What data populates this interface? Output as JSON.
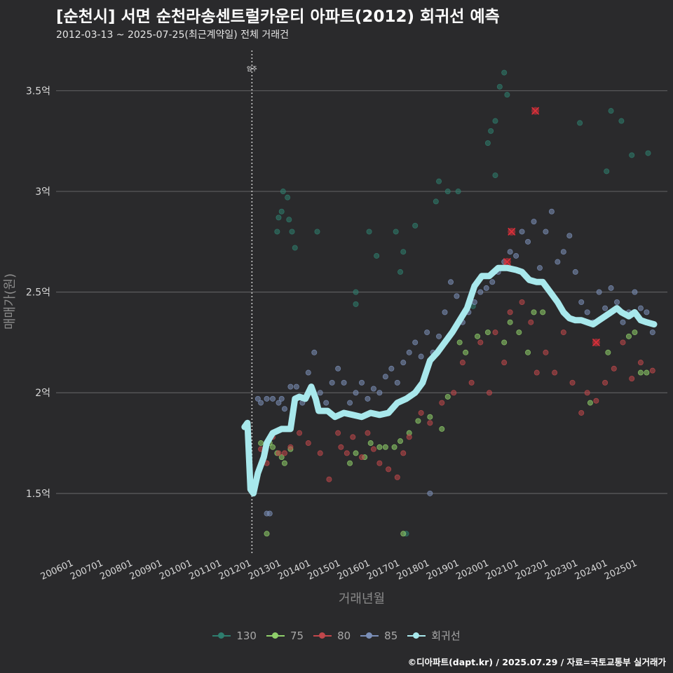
{
  "title": "[순천시] 서면 순천라송센트럴카운티 아파트(2012) 회귀선 예측",
  "subtitle": "2012-03-13 ~ 2025-07-25(최근계약일) 전체 거래건",
  "caption": "©디아파트(dapt.kr) / 2025.07.29 / 자료=국토교통부 실거래가",
  "chart_data": {
    "type": "scatter",
    "xlabel": "거래년월",
    "ylabel": "매매가(원)",
    "x_ticks": [
      "200601",
      "200701",
      "200801",
      "200901",
      "201001",
      "201101",
      "201201",
      "201301",
      "201401",
      "201501",
      "201601",
      "201701",
      "201801",
      "201901",
      "202001",
      "202101",
      "202201",
      "202301",
      "202401",
      "202501"
    ],
    "y_ticks": [
      {
        "value": 1.5,
        "label": "1.5억"
      },
      {
        "value": 2.0,
        "label": "2억"
      },
      {
        "value": 2.5,
        "label": "2.5억"
      },
      {
        "value": 3.0,
        "label": "3억"
      },
      {
        "value": 3.5,
        "label": "3.5억"
      }
    ],
    "xlim": [
      2005.4,
      2026.0
    ],
    "ylim": [
      1.2,
      3.7
    ],
    "y_unit": "억",
    "grid": true,
    "legend_position": "bottom",
    "vline": {
      "x": 2012.0,
      "label": "입주"
    },
    "colors": {
      "130": "#2e7d6e",
      "75": "#8fcf6a",
      "80": "#c0474b",
      "85": "#7b8fb8",
      "회귀선": "#a8e8ec"
    },
    "series": [
      {
        "name": "130",
        "points": [
          [
            2012.85,
            2.8
          ],
          [
            2012.9,
            2.87
          ],
          [
            2013.0,
            2.9
          ],
          [
            2013.05,
            3.0
          ],
          [
            2013.2,
            2.97
          ],
          [
            2013.25,
            2.86
          ],
          [
            2013.35,
            2.8
          ],
          [
            2013.45,
            2.72
          ],
          [
            2014.2,
            2.8
          ],
          [
            2015.5,
            2.5
          ],
          [
            2015.5,
            2.44
          ],
          [
            2015.95,
            2.8
          ],
          [
            2016.2,
            2.68
          ],
          [
            2016.85,
            2.8
          ],
          [
            2017.0,
            2.6
          ],
          [
            2017.1,
            2.7
          ],
          [
            2017.5,
            2.83
          ],
          [
            2018.2,
            2.95
          ],
          [
            2018.3,
            3.05
          ],
          [
            2018.6,
            3.0
          ],
          [
            2018.95,
            3.0
          ],
          [
            2019.45,
            2.43
          ],
          [
            2019.95,
            3.24
          ],
          [
            2020.05,
            3.3
          ],
          [
            2020.2,
            3.35
          ],
          [
            2020.2,
            3.08
          ],
          [
            2020.35,
            3.52
          ],
          [
            2020.5,
            3.59
          ],
          [
            2020.6,
            3.48
          ],
          [
            2023.05,
            3.34
          ],
          [
            2023.95,
            3.1
          ],
          [
            2024.1,
            3.4
          ],
          [
            2024.45,
            3.35
          ],
          [
            2024.8,
            3.18
          ],
          [
            2025.35,
            3.19
          ],
          [
            2017.2,
            1.3
          ]
        ]
      },
      {
        "name": "75",
        "points": [
          [
            2012.3,
            1.75
          ],
          [
            2012.6,
            1.75
          ],
          [
            2012.7,
            1.73
          ],
          [
            2012.85,
            1.7
          ],
          [
            2013.0,
            1.68
          ],
          [
            2013.1,
            1.65
          ],
          [
            2013.3,
            1.72
          ],
          [
            2015.3,
            1.65
          ],
          [
            2015.5,
            1.7
          ],
          [
            2015.8,
            1.68
          ],
          [
            2016.0,
            1.75
          ],
          [
            2016.3,
            1.73
          ],
          [
            2016.5,
            1.73
          ],
          [
            2016.8,
            1.73
          ],
          [
            2017.0,
            1.76
          ],
          [
            2017.3,
            1.8
          ],
          [
            2017.6,
            1.86
          ],
          [
            2018.0,
            1.88
          ],
          [
            2018.4,
            1.82
          ],
          [
            2018.6,
            1.98
          ],
          [
            2019.0,
            2.25
          ],
          [
            2019.2,
            2.2
          ],
          [
            2019.6,
            2.28
          ],
          [
            2019.95,
            2.3
          ],
          [
            2020.5,
            2.25
          ],
          [
            2020.7,
            2.35
          ],
          [
            2021.0,
            2.3
          ],
          [
            2021.3,
            2.2
          ],
          [
            2021.5,
            2.4
          ],
          [
            2021.8,
            2.4
          ],
          [
            2023.4,
            1.95
          ],
          [
            2024.0,
            2.2
          ],
          [
            2024.7,
            2.28
          ],
          [
            2024.9,
            2.3
          ],
          [
            2025.1,
            2.1
          ],
          [
            2025.3,
            2.1
          ],
          [
            2017.1,
            1.3
          ],
          [
            2012.5,
            1.3
          ]
        ]
      },
      {
        "name": "80",
        "points": [
          [
            2012.3,
            1.72
          ],
          [
            2012.5,
            1.65
          ],
          [
            2012.7,
            1.78
          ],
          [
            2012.9,
            1.7
          ],
          [
            2013.1,
            1.7
          ],
          [
            2013.3,
            1.73
          ],
          [
            2013.6,
            1.8
          ],
          [
            2013.9,
            1.75
          ],
          [
            2014.3,
            1.7
          ],
          [
            2014.6,
            1.57
          ],
          [
            2014.9,
            1.8
          ],
          [
            2015.0,
            1.73
          ],
          [
            2015.2,
            1.7
          ],
          [
            2015.4,
            1.78
          ],
          [
            2015.7,
            1.68
          ],
          [
            2015.9,
            1.8
          ],
          [
            2016.1,
            1.72
          ],
          [
            2016.3,
            1.65
          ],
          [
            2016.6,
            1.62
          ],
          [
            2016.9,
            1.58
          ],
          [
            2017.1,
            1.7
          ],
          [
            2017.3,
            1.78
          ],
          [
            2017.7,
            1.9
          ],
          [
            2018.0,
            1.85
          ],
          [
            2018.4,
            1.95
          ],
          [
            2018.8,
            2.0
          ],
          [
            2019.1,
            2.15
          ],
          [
            2019.4,
            2.05
          ],
          [
            2019.7,
            2.25
          ],
          [
            2020.0,
            2.0
          ],
          [
            2020.2,
            2.3
          ],
          [
            2020.5,
            2.15
          ],
          [
            2020.7,
            2.4
          ],
          [
            2021.1,
            2.45
          ],
          [
            2021.4,
            2.35
          ],
          [
            2021.6,
            2.1
          ],
          [
            2021.9,
            2.2
          ],
          [
            2022.2,
            2.1
          ],
          [
            2022.5,
            2.3
          ],
          [
            2022.8,
            2.05
          ],
          [
            2023.1,
            1.9
          ],
          [
            2023.3,
            2.0
          ],
          [
            2023.6,
            1.96
          ],
          [
            2023.9,
            2.05
          ],
          [
            2024.2,
            2.12
          ],
          [
            2024.5,
            2.25
          ],
          [
            2024.8,
            2.07
          ],
          [
            2025.1,
            2.15
          ],
          [
            2025.5,
            2.11
          ]
        ]
      },
      {
        "name": "85",
        "points": [
          [
            2012.2,
            1.97
          ],
          [
            2012.3,
            1.95
          ],
          [
            2012.5,
            1.97
          ],
          [
            2012.7,
            1.97
          ],
          [
            2012.9,
            1.95
          ],
          [
            2013.0,
            1.97
          ],
          [
            2013.1,
            1.92
          ],
          [
            2013.3,
            2.03
          ],
          [
            2013.5,
            2.03
          ],
          [
            2013.7,
            1.95
          ],
          [
            2013.9,
            2.1
          ],
          [
            2014.1,
            2.2
          ],
          [
            2014.3,
            2.0
          ],
          [
            2014.5,
            1.95
          ],
          [
            2014.7,
            2.05
          ],
          [
            2014.9,
            2.12
          ],
          [
            2015.1,
            2.05
          ],
          [
            2015.3,
            1.95
          ],
          [
            2015.5,
            2.0
          ],
          [
            2015.7,
            2.05
          ],
          [
            2015.9,
            1.97
          ],
          [
            2016.1,
            2.02
          ],
          [
            2016.3,
            2.0
          ],
          [
            2016.5,
            2.08
          ],
          [
            2016.7,
            2.12
          ],
          [
            2016.9,
            2.05
          ],
          [
            2017.1,
            2.15
          ],
          [
            2017.3,
            2.2
          ],
          [
            2017.5,
            2.25
          ],
          [
            2017.7,
            2.18
          ],
          [
            2017.9,
            2.3
          ],
          [
            2018.1,
            2.2
          ],
          [
            2018.3,
            2.28
          ],
          [
            2018.5,
            2.4
          ],
          [
            2018.7,
            2.55
          ],
          [
            2018.9,
            2.48
          ],
          [
            2019.1,
            2.35
          ],
          [
            2019.3,
            2.4
          ],
          [
            2019.5,
            2.45
          ],
          [
            2019.7,
            2.5
          ],
          [
            2019.9,
            2.52
          ],
          [
            2020.1,
            2.55
          ],
          [
            2020.3,
            2.6
          ],
          [
            2020.5,
            2.65
          ],
          [
            2020.7,
            2.7
          ],
          [
            2020.9,
            2.68
          ],
          [
            2021.1,
            2.8
          ],
          [
            2021.3,
            2.75
          ],
          [
            2021.5,
            2.85
          ],
          [
            2021.7,
            2.62
          ],
          [
            2021.9,
            2.8
          ],
          [
            2022.1,
            2.9
          ],
          [
            2022.3,
            2.65
          ],
          [
            2022.5,
            2.7
          ],
          [
            2022.7,
            2.78
          ],
          [
            2022.9,
            2.6
          ],
          [
            2023.1,
            2.45
          ],
          [
            2023.3,
            2.4
          ],
          [
            2023.5,
            2.35
          ],
          [
            2023.7,
            2.5
          ],
          [
            2023.9,
            2.42
          ],
          [
            2024.1,
            2.52
          ],
          [
            2024.3,
            2.45
          ],
          [
            2024.5,
            2.35
          ],
          [
            2024.7,
            2.4
          ],
          [
            2024.9,
            2.5
          ],
          [
            2025.1,
            2.42
          ],
          [
            2025.3,
            2.4
          ],
          [
            2025.5,
            2.3
          ],
          [
            2018.0,
            1.5
          ],
          [
            2012.5,
            1.4
          ],
          [
            2012.6,
            1.4
          ]
        ]
      }
    ],
    "regression": {
      "name": "회귀선",
      "points": [
        [
          2011.75,
          1.83
        ],
        [
          2011.85,
          1.85
        ],
        [
          2011.95,
          1.52
        ],
        [
          2012.05,
          1.5
        ],
        [
          2012.2,
          1.6
        ],
        [
          2012.4,
          1.68
        ],
        [
          2012.5,
          1.75
        ],
        [
          2012.7,
          1.8
        ],
        [
          2013.0,
          1.82
        ],
        [
          2013.3,
          1.82
        ],
        [
          2013.45,
          1.97
        ],
        [
          2013.6,
          1.98
        ],
        [
          2013.8,
          1.97
        ],
        [
          2014.0,
          2.03
        ],
        [
          2014.15,
          1.97
        ],
        [
          2014.25,
          1.91
        ],
        [
          2014.55,
          1.91
        ],
        [
          2014.8,
          1.88
        ],
        [
          2015.1,
          1.9
        ],
        [
          2015.4,
          1.89
        ],
        [
          2015.7,
          1.88
        ],
        [
          2016.0,
          1.9
        ],
        [
          2016.3,
          1.89
        ],
        [
          2016.6,
          1.9
        ],
        [
          2016.9,
          1.95
        ],
        [
          2017.2,
          1.97
        ],
        [
          2017.5,
          2.0
        ],
        [
          2017.75,
          2.05
        ],
        [
          2018.0,
          2.16
        ],
        [
          2018.25,
          2.2
        ],
        [
          2018.5,
          2.25
        ],
        [
          2018.75,
          2.3
        ],
        [
          2019.0,
          2.36
        ],
        [
          2019.25,
          2.42
        ],
        [
          2019.5,
          2.53
        ],
        [
          2019.75,
          2.58
        ],
        [
          2020.0,
          2.58
        ],
        [
          2020.3,
          2.62
        ],
        [
          2020.6,
          2.62
        ],
        [
          2020.9,
          2.61
        ],
        [
          2021.1,
          2.6
        ],
        [
          2021.35,
          2.56
        ],
        [
          2021.6,
          2.55
        ],
        [
          2021.8,
          2.55
        ],
        [
          2022.05,
          2.5
        ],
        [
          2022.3,
          2.45
        ],
        [
          2022.5,
          2.4
        ],
        [
          2022.7,
          2.37
        ],
        [
          2022.9,
          2.36
        ],
        [
          2023.1,
          2.36
        ],
        [
          2023.3,
          2.35
        ],
        [
          2023.5,
          2.34
        ],
        [
          2023.7,
          2.36
        ],
        [
          2023.9,
          2.38
        ],
        [
          2024.1,
          2.4
        ],
        [
          2024.3,
          2.42
        ],
        [
          2024.45,
          2.4
        ],
        [
          2024.7,
          2.38
        ],
        [
          2024.9,
          2.4
        ],
        [
          2025.1,
          2.36
        ],
        [
          2025.3,
          2.35
        ],
        [
          2025.55,
          2.34
        ]
      ]
    },
    "highlighted": [
      [
        2020.6,
        2.65
      ],
      [
        2020.75,
        2.8
      ],
      [
        2021.55,
        3.4
      ],
      [
        2023.6,
        2.25
      ]
    ]
  },
  "legend": [
    {
      "label": "130",
      "color": "#2e7d6e"
    },
    {
      "label": "75",
      "color": "#8fcf6a"
    },
    {
      "label": "80",
      "color": "#c0474b"
    },
    {
      "label": "85",
      "color": "#7b8fb8"
    },
    {
      "label": "회귀선",
      "color": "#a8e8ec"
    }
  ]
}
